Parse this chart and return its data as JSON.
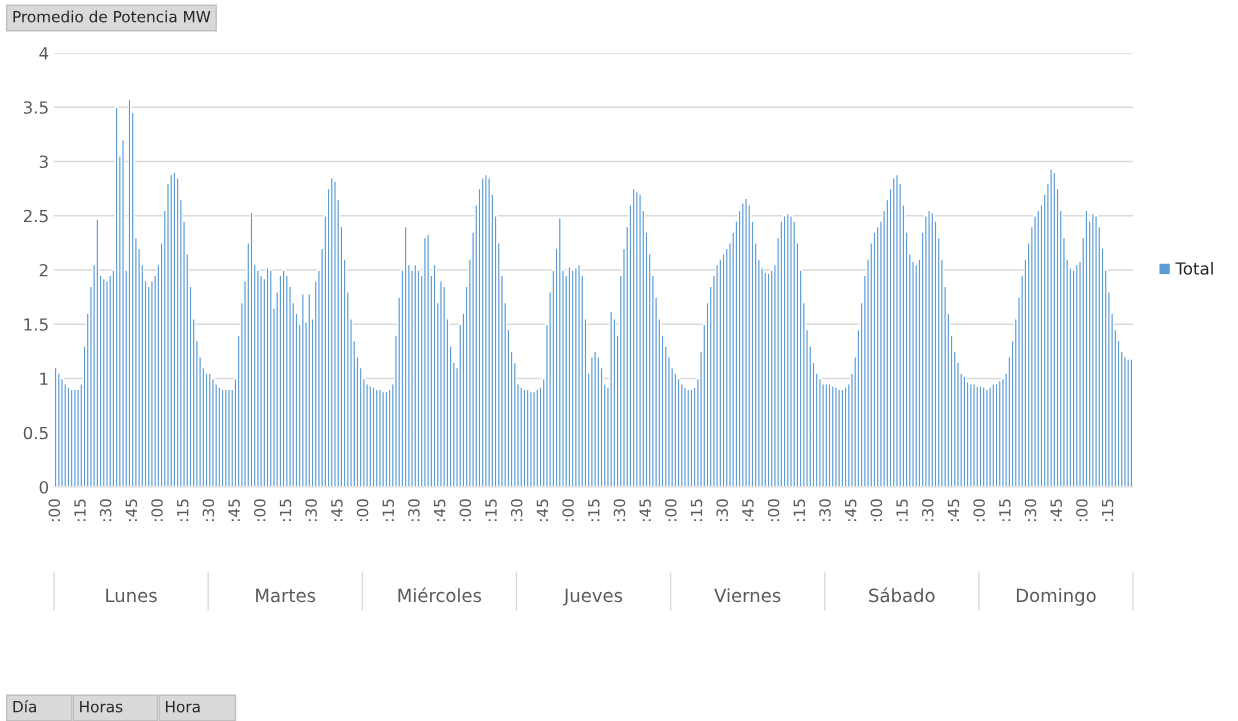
{
  "chart_data": {
    "type": "bar",
    "title": "Promedio de Potencia MW",
    "categories": [
      ":00",
      null,
      null,
      null,
      null,
      null,
      null,
      null,
      ":15",
      null,
      null,
      null,
      null,
      null,
      null,
      null,
      ":30",
      null,
      null,
      null,
      null,
      null,
      null,
      null,
      ":45",
      null,
      null,
      null,
      null,
      null,
      null,
      null,
      ":00",
      null,
      null,
      null,
      null,
      null,
      null,
      null,
      ":15",
      null,
      null,
      null,
      null,
      null,
      null,
      null,
      ":30",
      null,
      null,
      null,
      null,
      null,
      null,
      null,
      ":45",
      null,
      null,
      null,
      null,
      null,
      null,
      null,
      ":00",
      null,
      null,
      null,
      null,
      null,
      null,
      null,
      ":15",
      null,
      null,
      null,
      null,
      null,
      null,
      null,
      ":30",
      null,
      null,
      null,
      null,
      null,
      null,
      null,
      ":45",
      null,
      null,
      null,
      null,
      null,
      null,
      null,
      ":00",
      null,
      null,
      null,
      null,
      null,
      null,
      null,
      ":15",
      null,
      null,
      null,
      null,
      null,
      null,
      null,
      ":30",
      null,
      null,
      null,
      null,
      null,
      null,
      null,
      ":45",
      null,
      null,
      null,
      null,
      null,
      null,
      null,
      ":00",
      null,
      null,
      null,
      null,
      null,
      null,
      null,
      ":15",
      null,
      null,
      null,
      null,
      null,
      null,
      null,
      ":30",
      null,
      null,
      null,
      null,
      null,
      null,
      null,
      ":45",
      null,
      null,
      null,
      null,
      null,
      null,
      null,
      ":00",
      null,
      null,
      null,
      null,
      null,
      null,
      null,
      ":15",
      null,
      null,
      null,
      null,
      null,
      null,
      null,
      ":30",
      null,
      null,
      null,
      null,
      null,
      null,
      null,
      ":45",
      null,
      null,
      null,
      null,
      null,
      null,
      null,
      ":00",
      null,
      null,
      null,
      null,
      null,
      null,
      null,
      ":15",
      null,
      null,
      null,
      null,
      null,
      null,
      null,
      ":30",
      null,
      null,
      null,
      null,
      null,
      null,
      null,
      ":45",
      null,
      null,
      null,
      null,
      null,
      null,
      null,
      ":00",
      null,
      null,
      null,
      null,
      null,
      null,
      null,
      ":15",
      null,
      null,
      null,
      null,
      null,
      null,
      null,
      ":30",
      null,
      null,
      null,
      null,
      null,
      null,
      null,
      ":45",
      null,
      null,
      null,
      null,
      null,
      null,
      null,
      ":00",
      null,
      null,
      null,
      null,
      null,
      null,
      null,
      ":15",
      null,
      null,
      null,
      null,
      null,
      null,
      null,
      ":30",
      null,
      null,
      null,
      null,
      null,
      null,
      null,
      ":45",
      null,
      null,
      null,
      null,
      null,
      null,
      null,
      ":00",
      null,
      null,
      null,
      null,
      null,
      null,
      null,
      ":15",
      null,
      null,
      null,
      null,
      null,
      null,
      null,
      ":30",
      null,
      null,
      null,
      null,
      null,
      null,
      null,
      ":45",
      null,
      null,
      null,
      null,
      null,
      null,
      null,
      ":00",
      null,
      null,
      null,
      null,
      null,
      null,
      null,
      ":15",
      null,
      null,
      null,
      null,
      null,
      null,
      null
    ],
    "series": [
      {
        "name": "Total",
        "color": "#5b9bd5",
        "values": [
          1.1,
          1.05,
          1.0,
          0.95,
          0.92,
          0.9,
          0.9,
          0.9,
          0.95,
          1.3,
          1.6,
          1.85,
          2.05,
          2.47,
          1.95,
          1.92,
          1.9,
          1.95,
          2.0,
          3.5,
          3.05,
          3.2,
          2.0,
          3.57,
          3.45,
          2.3,
          2.2,
          2.05,
          1.9,
          1.85,
          1.9,
          1.95,
          2.05,
          2.25,
          2.55,
          2.8,
          2.88,
          2.9,
          2.85,
          2.65,
          2.45,
          2.15,
          1.85,
          1.55,
          1.35,
          1.2,
          1.1,
          1.05,
          1.05,
          1.0,
          0.95,
          0.92,
          0.9,
          0.9,
          0.9,
          0.9,
          1.0,
          1.4,
          1.7,
          1.9,
          2.25,
          2.53,
          2.05,
          2.0,
          1.95,
          1.92,
          2.02,
          2.0,
          1.65,
          1.8,
          1.95,
          2.0,
          1.95,
          1.85,
          1.7,
          1.6,
          1.5,
          1.78,
          1.52,
          1.78,
          1.55,
          1.9,
          2.0,
          2.2,
          2.5,
          2.75,
          2.85,
          2.82,
          2.65,
          2.4,
          2.1,
          1.8,
          1.55,
          1.35,
          1.2,
          1.1,
          1.0,
          0.95,
          0.93,
          0.92,
          0.9,
          0.9,
          0.88,
          0.88,
          0.9,
          0.95,
          1.4,
          1.75,
          2.0,
          2.4,
          2.05,
          2.0,
          2.05,
          2.0,
          1.95,
          2.3,
          2.33,
          1.95,
          2.05,
          1.7,
          1.9,
          1.85,
          1.55,
          1.3,
          1.15,
          1.1,
          1.5,
          1.6,
          1.85,
          2.1,
          2.35,
          2.6,
          2.75,
          2.85,
          2.88,
          2.85,
          2.7,
          2.5,
          2.25,
          1.95,
          1.7,
          1.45,
          1.25,
          1.15,
          0.95,
          0.92,
          0.9,
          0.9,
          0.88,
          0.88,
          0.9,
          0.92,
          1.0,
          1.5,
          1.8,
          2.0,
          2.2,
          2.48,
          2.0,
          1.95,
          2.03,
          2.0,
          2.02,
          2.05,
          1.95,
          1.55,
          1.05,
          1.2,
          1.25,
          1.2,
          1.1,
          0.95,
          0.92,
          1.62,
          1.55,
          1.4,
          1.95,
          2.2,
          2.4,
          2.6,
          2.75,
          2.72,
          2.7,
          2.55,
          2.35,
          2.15,
          1.95,
          1.75,
          1.55,
          1.4,
          1.3,
          1.2,
          1.1,
          1.05,
          1.0,
          0.95,
          0.92,
          0.9,
          0.9,
          0.92,
          1.0,
          1.25,
          1.5,
          1.7,
          1.85,
          1.95,
          2.05,
          2.1,
          2.15,
          2.2,
          2.25,
          2.35,
          2.45,
          2.55,
          2.62,
          2.66,
          2.6,
          2.45,
          2.25,
          2.1,
          2.02,
          1.98,
          1.97,
          2.0,
          2.05,
          2.3,
          2.45,
          2.5,
          2.52,
          2.5,
          2.45,
          2.25,
          2.0,
          1.7,
          1.45,
          1.3,
          1.15,
          1.05,
          1.0,
          0.95,
          0.95,
          0.95,
          0.93,
          0.92,
          0.9,
          0.9,
          0.92,
          0.95,
          1.05,
          1.2,
          1.45,
          1.7,
          1.95,
          2.1,
          2.25,
          2.35,
          2.4,
          2.45,
          2.55,
          2.65,
          2.75,
          2.85,
          2.88,
          2.8,
          2.6,
          2.35,
          2.15,
          2.08,
          2.05,
          2.1,
          2.35,
          2.5,
          2.55,
          2.53,
          2.45,
          2.3,
          2.1,
          1.85,
          1.6,
          1.4,
          1.25,
          1.15,
          1.05,
          1.02,
          0.97,
          0.95,
          0.95,
          0.93,
          0.93,
          0.92,
          0.9,
          0.92,
          0.95,
          0.95,
          0.98,
          1.0,
          1.05,
          1.2,
          1.35,
          1.55,
          1.75,
          1.95,
          2.1,
          2.25,
          2.4,
          2.5,
          2.55,
          2.6,
          2.7,
          2.8,
          2.93,
          2.9,
          2.75,
          2.55,
          2.3,
          2.1,
          2.02,
          2.0,
          2.05,
          2.08,
          2.3,
          2.55,
          2.45,
          2.52,
          2.5,
          2.4,
          2.2,
          2.0,
          1.8,
          1.6,
          1.45,
          1.35,
          1.25,
          1.2,
          1.18,
          1.18
        ]
      }
    ],
    "ylim": [
      0,
      4
    ],
    "yticks": [
      0,
      0.5,
      1,
      1.5,
      2,
      2.5,
      3,
      3.5,
      4
    ],
    "grid": "y",
    "legend": "right",
    "annotations": [
      "Lunes",
      "Martes",
      "Miércoles",
      "Jueves",
      "Viernes",
      "Sábado",
      "Domingo",
      "Día",
      "Horas",
      "Hora"
    ]
  }
}
